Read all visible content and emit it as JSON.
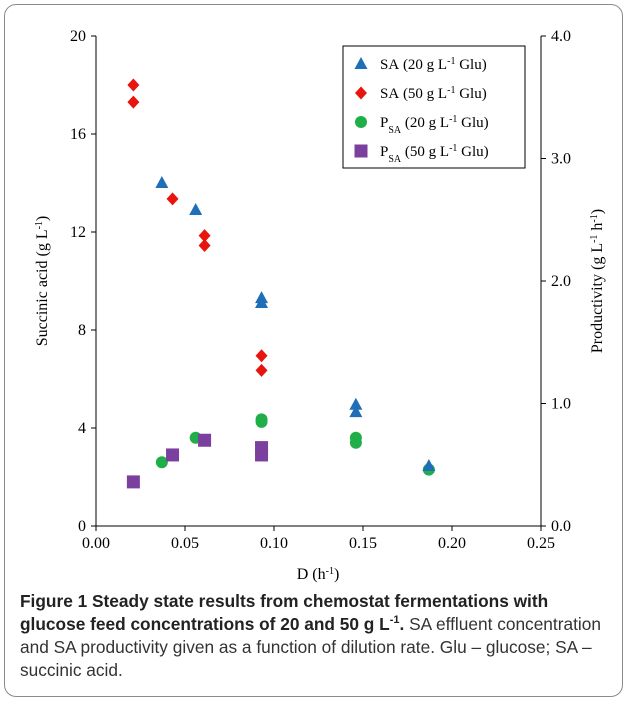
{
  "chart_data": {
    "type": "scatter",
    "xlabel": "D (h",
    "xlabel_sup": "-1",
    "xlabel_end": ")",
    "ylabel": "Succinic acid (g L",
    "ylabel_sup": "-1",
    "ylabel_end": ")",
    "y2label": "Productivity (g L",
    "y2label_sup": "-1",
    "y2label_mid": " h",
    "y2label_sup2": "-1",
    "y2label_end": ")",
    "xlim": [
      0,
      0.25
    ],
    "ylim": [
      0,
      20
    ],
    "y2lim": [
      0,
      4.0
    ],
    "x_ticks": [
      "0.00",
      "0.05",
      "0.10",
      "0.15",
      "0.20",
      "0.25"
    ],
    "y_ticks": [
      "0",
      "4",
      "8",
      "12",
      "16",
      "20"
    ],
    "y2_ticks": [
      "0.0",
      "1.0",
      "2.0",
      "3.0",
      "4.0"
    ],
    "legend_position": "top-right",
    "series": [
      {
        "name": "SA (20 g L-1 Glu)",
        "label_main": "SA",
        "label_sub": "",
        "label_rest": "(20 g L",
        "label_sup": "-1",
        "label_end": " Glu)",
        "marker": "triangle",
        "color": "#1f6fb8",
        "axis": "left",
        "points": [
          [
            0.037,
            14.0
          ],
          [
            0.056,
            12.9
          ],
          [
            0.093,
            9.1
          ],
          [
            0.093,
            9.3
          ],
          [
            0.146,
            4.65
          ],
          [
            0.146,
            4.95
          ],
          [
            0.187,
            2.45
          ]
        ]
      },
      {
        "name": "SA (50 g L-1 Glu)",
        "label_main": "SA",
        "label_sub": "",
        "label_rest": "(50 g L",
        "label_sup": "-1",
        "label_end": " Glu)",
        "marker": "diamond",
        "color": "#e8140e",
        "axis": "left",
        "points": [
          [
            0.021,
            18.0
          ],
          [
            0.021,
            17.3
          ],
          [
            0.043,
            13.35
          ],
          [
            0.061,
            11.85
          ],
          [
            0.061,
            11.45
          ],
          [
            0.093,
            6.95
          ],
          [
            0.093,
            6.35
          ]
        ]
      },
      {
        "name": "PSA (20 g L-1 Glu)",
        "label_main": "P",
        "label_sub": "SA",
        "label_rest": "(20 g L",
        "label_sup": "-1",
        "label_end": " Glu)",
        "marker": "circle",
        "color": "#1fae48",
        "axis": "right",
        "points": [
          [
            0.037,
            0.52
          ],
          [
            0.056,
            0.72
          ],
          [
            0.093,
            0.85
          ],
          [
            0.093,
            0.87
          ],
          [
            0.146,
            0.68
          ],
          [
            0.146,
            0.72
          ],
          [
            0.187,
            0.46
          ]
        ]
      },
      {
        "name": "PSA (50 g L-1 Glu)",
        "label_main": "P",
        "label_sub": "SA",
        "label_rest": "(50 g L",
        "label_sup": "-1",
        "label_end": " Glu)",
        "marker": "square",
        "color": "#7b3f9e",
        "axis": "right",
        "points": [
          [
            0.021,
            0.36
          ],
          [
            0.043,
            0.58
          ],
          [
            0.061,
            0.7
          ],
          [
            0.093,
            0.58
          ],
          [
            0.093,
            0.64
          ]
        ]
      }
    ]
  },
  "caption": {
    "title_part1": "Figure 1 Steady state results from chemostat fermentations with glucose feed concentrations of 20 and 50 g L",
    "title_sup": "-1",
    "title_end": ".",
    "body": " SA effluent concentration and SA productivity given as a function of dilution rate. Glu – glucose; SA – succinic acid."
  }
}
